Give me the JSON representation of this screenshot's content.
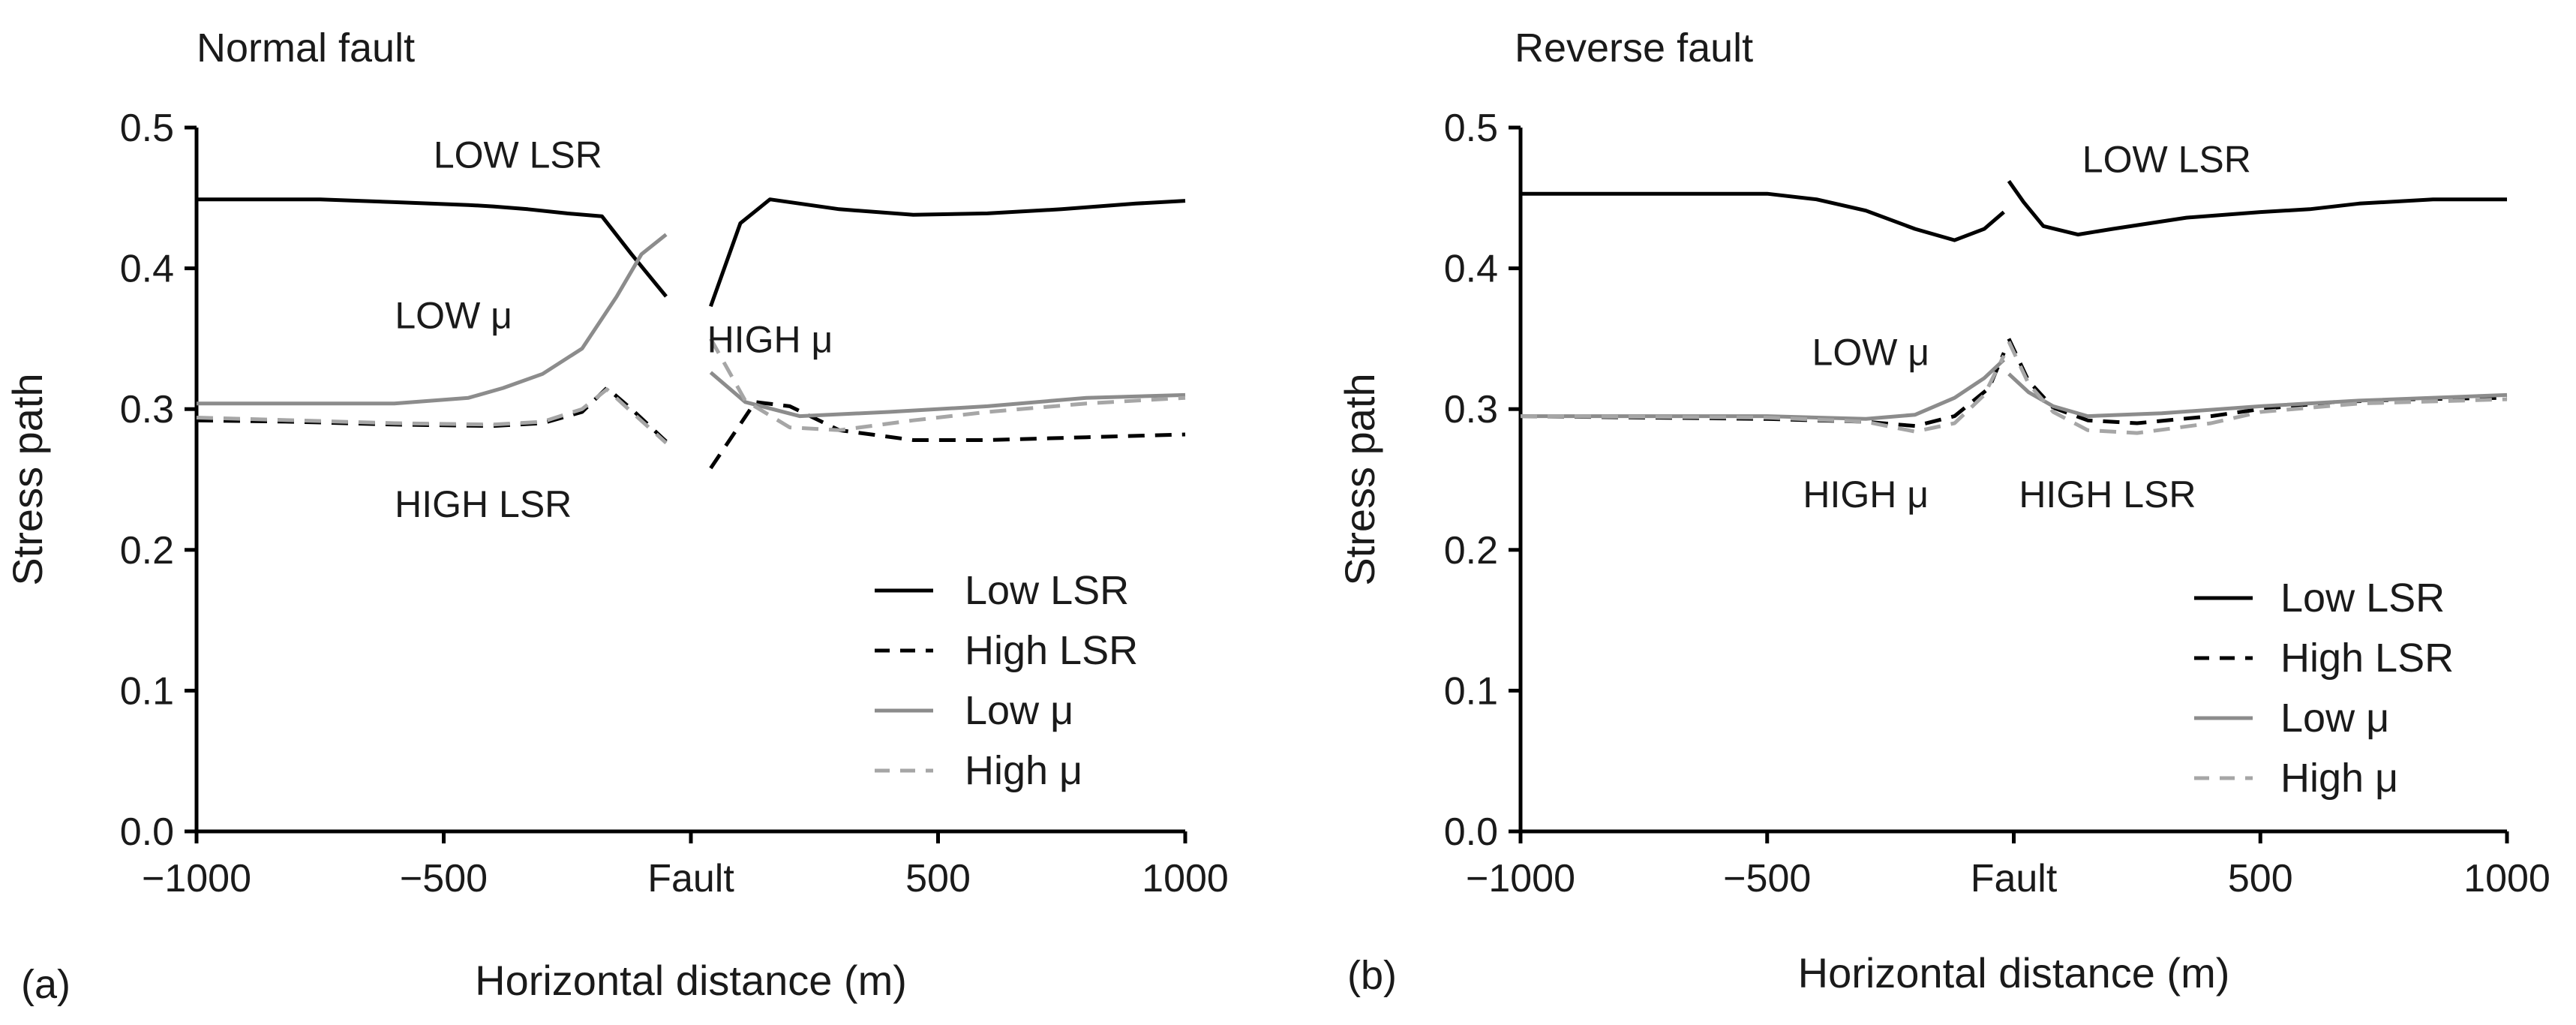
{
  "chart_data": [
    {
      "type": "line",
      "panel_label": "(a)",
      "title": "Normal fault",
      "xlabel": "Horizontal distance (m)",
      "ylabel": "Stress path",
      "xlim": [
        -1000,
        1000
      ],
      "ylim": [
        0.0,
        0.5
      ],
      "x_ticks": [
        -1000,
        -500,
        0,
        500,
        1000
      ],
      "x_tick_labels": [
        "−1000",
        "−500",
        "Fault",
        "500",
        "1000"
      ],
      "y_ticks": [
        0.0,
        0.1,
        0.2,
        0.3,
        0.4,
        0.5
      ],
      "y_tick_labels": [
        "0.0",
        "0.1",
        "0.2",
        "0.3",
        "0.4",
        "0.5"
      ],
      "legend_position": "bottom-right",
      "series": [
        {
          "name": "Low LSR",
          "color": "#000000",
          "dash": "solid",
          "segments": [
            [
              [
                -1000,
                0.449
              ],
              [
                -750,
                0.449
              ],
              [
                -600,
                0.447
              ],
              [
                -450,
                0.445
              ],
              [
                -400,
                0.444
              ],
              [
                -330,
                0.442
              ],
              [
                -250,
                0.439
              ],
              [
                -180,
                0.437
              ],
              [
                -120,
                0.41
              ],
              [
                -50,
                0.38
              ]
            ],
            [
              [
                40,
                0.373
              ],
              [
                100,
                0.432
              ],
              [
                160,
                0.449
              ],
              [
                300,
                0.442
              ],
              [
                450,
                0.438
              ],
              [
                600,
                0.439
              ],
              [
                750,
                0.442
              ],
              [
                900,
                0.446
              ],
              [
                1000,
                0.448
              ]
            ]
          ]
        },
        {
          "name": "High LSR",
          "color": "#000000",
          "dash": "dashed",
          "segments": [
            [
              [
                -1000,
                0.292
              ],
              [
                -800,
                0.291
              ],
              [
                -600,
                0.289
              ],
              [
                -400,
                0.288
              ],
              [
                -300,
                0.29
              ],
              [
                -220,
                0.298
              ],
              [
                -170,
                0.315
              ],
              [
                -120,
                0.3
              ],
              [
                -50,
                0.277
              ]
            ],
            [
              [
                40,
                0.258
              ],
              [
                130,
                0.305
              ],
              [
                200,
                0.302
              ],
              [
                300,
                0.285
              ],
              [
                450,
                0.278
              ],
              [
                600,
                0.278
              ],
              [
                800,
                0.28
              ],
              [
                1000,
                0.282
              ]
            ]
          ]
        },
        {
          "name": "Low μ",
          "color": "#8c8c8c",
          "dash": "solid",
          "segments": [
            [
              [
                -1000,
                0.304
              ],
              [
                -600,
                0.304
              ],
              [
                -450,
                0.308
              ],
              [
                -380,
                0.315
              ],
              [
                -300,
                0.325
              ],
              [
                -220,
                0.343
              ],
              [
                -150,
                0.38
              ],
              [
                -100,
                0.41
              ],
              [
                -50,
                0.424
              ]
            ],
            [
              [
                40,
                0.326
              ],
              [
                110,
                0.305
              ],
              [
                220,
                0.295
              ],
              [
                400,
                0.298
              ],
              [
                600,
                0.302
              ],
              [
                800,
                0.308
              ],
              [
                1000,
                0.31
              ]
            ]
          ]
        },
        {
          "name": "High μ",
          "color": "#a6a6a6",
          "dash": "dashed",
          "segments": [
            [
              [
                -1000,
                0.294
              ],
              [
                -800,
                0.292
              ],
              [
                -600,
                0.29
              ],
              [
                -400,
                0.289
              ],
              [
                -300,
                0.291
              ],
              [
                -220,
                0.3
              ],
              [
                -170,
                0.314
              ],
              [
                -120,
                0.298
              ],
              [
                -50,
                0.276
              ]
            ],
            [
              [
                40,
                0.35
              ],
              [
                110,
                0.306
              ],
              [
                200,
                0.287
              ],
              [
                300,
                0.285
              ],
              [
                450,
                0.292
              ],
              [
                600,
                0.298
              ],
              [
                800,
                0.304
              ],
              [
                1000,
                0.308
              ]
            ]
          ]
        }
      ],
      "annotations": [
        {
          "text": "LOW LSR",
          "x": -350,
          "y": 0.481
        },
        {
          "text": "LOW μ",
          "x": -480,
          "y": 0.367
        },
        {
          "text": "HIGH μ",
          "x": 160,
          "y": 0.35
        },
        {
          "text": "HIGH LSR",
          "x": -420,
          "y": 0.233
        }
      ]
    },
    {
      "type": "line",
      "panel_label": "(b)",
      "title": "Reverse fault",
      "xlabel": "Horizontal distance (m)",
      "ylabel": "Stress path",
      "xlim": [
        -1000,
        1000
      ],
      "ylim": [
        0.0,
        0.5
      ],
      "x_ticks": [
        -1000,
        -500,
        0,
        500,
        1000
      ],
      "x_tick_labels": [
        "−1000",
        "−500",
        "Fault",
        "500",
        "1000"
      ],
      "y_ticks": [
        0.0,
        0.1,
        0.2,
        0.3,
        0.4,
        0.5
      ],
      "y_tick_labels": [
        "0.0",
        "0.1",
        "0.2",
        "0.3",
        "0.4",
        "0.5"
      ],
      "legend_position": "bottom-right",
      "series": [
        {
          "name": "Low LSR",
          "color": "#000000",
          "dash": "solid",
          "segments": [
            [
              [
                -1000,
                0.453
              ],
              [
                -500,
                0.453
              ],
              [
                -400,
                0.449
              ],
              [
                -300,
                0.441
              ],
              [
                -200,
                0.428
              ],
              [
                -120,
                0.42
              ],
              [
                -60,
                0.428
              ],
              [
                -20,
                0.44
              ]
            ],
            [
              [
                -10,
                0.462
              ],
              [
                20,
                0.447
              ],
              [
                60,
                0.43
              ],
              [
                130,
                0.424
              ],
              [
                200,
                0.428
              ],
              [
                350,
                0.436
              ],
              [
                500,
                0.44
              ],
              [
                600,
                0.442
              ],
              [
                700,
                0.446
              ],
              [
                850,
                0.449
              ],
              [
                1000,
                0.449
              ]
            ]
          ]
        },
        {
          "name": "High LSR",
          "color": "#000000",
          "dash": "dashed",
          "segments": [
            [
              [
                -1000,
                0.295
              ],
              [
                -500,
                0.293
              ],
              [
                -300,
                0.291
              ],
              [
                -200,
                0.288
              ],
              [
                -120,
                0.295
              ],
              [
                -50,
                0.315
              ],
              [
                -20,
                0.34
              ]
            ],
            [
              [
                -10,
                0.35
              ],
              [
                30,
                0.32
              ],
              [
                80,
                0.301
              ],
              [
                150,
                0.292
              ],
              [
                250,
                0.29
              ],
              [
                400,
                0.295
              ],
              [
                500,
                0.3
              ],
              [
                650,
                0.305
              ],
              [
                800,
                0.307
              ],
              [
                1000,
                0.308
              ]
            ]
          ]
        },
        {
          "name": "Low μ",
          "color": "#8c8c8c",
          "dash": "solid",
          "segments": [
            [
              [
                -1000,
                0.295
              ],
              [
                -500,
                0.295
              ],
              [
                -300,
                0.293
              ],
              [
                -200,
                0.296
              ],
              [
                -120,
                0.308
              ],
              [
                -60,
                0.322
              ],
              [
                -20,
                0.335
              ]
            ],
            [
              [
                -10,
                0.325
              ],
              [
                30,
                0.312
              ],
              [
                80,
                0.302
              ],
              [
                150,
                0.295
              ],
              [
                300,
                0.297
              ],
              [
                500,
                0.302
              ],
              [
                700,
                0.306
              ],
              [
                1000,
                0.31
              ]
            ]
          ]
        },
        {
          "name": "High μ",
          "color": "#a6a6a6",
          "dash": "dashed",
          "segments": [
            [
              [
                -1000,
                0.295
              ],
              [
                -500,
                0.294
              ],
              [
                -300,
                0.291
              ],
              [
                -200,
                0.284
              ],
              [
                -120,
                0.29
              ],
              [
                -60,
                0.31
              ],
              [
                -20,
                0.338
              ]
            ],
            [
              [
                -10,
                0.348
              ],
              [
                30,
                0.318
              ],
              [
                80,
                0.298
              ],
              [
                150,
                0.285
              ],
              [
                250,
                0.283
              ],
              [
                400,
                0.29
              ],
              [
                500,
                0.298
              ],
              [
                700,
                0.304
              ],
              [
                1000,
                0.307
              ]
            ]
          ]
        }
      ],
      "annotations": [
        {
          "text": "LOW LSR",
          "x": 310,
          "y": 0.478
        },
        {
          "text": "LOW μ",
          "x": -290,
          "y": 0.341
        },
        {
          "text": "HIGH μ",
          "x": -300,
          "y": 0.24
        },
        {
          "text": "HIGH LSR",
          "x": 190,
          "y": 0.24
        }
      ]
    }
  ]
}
